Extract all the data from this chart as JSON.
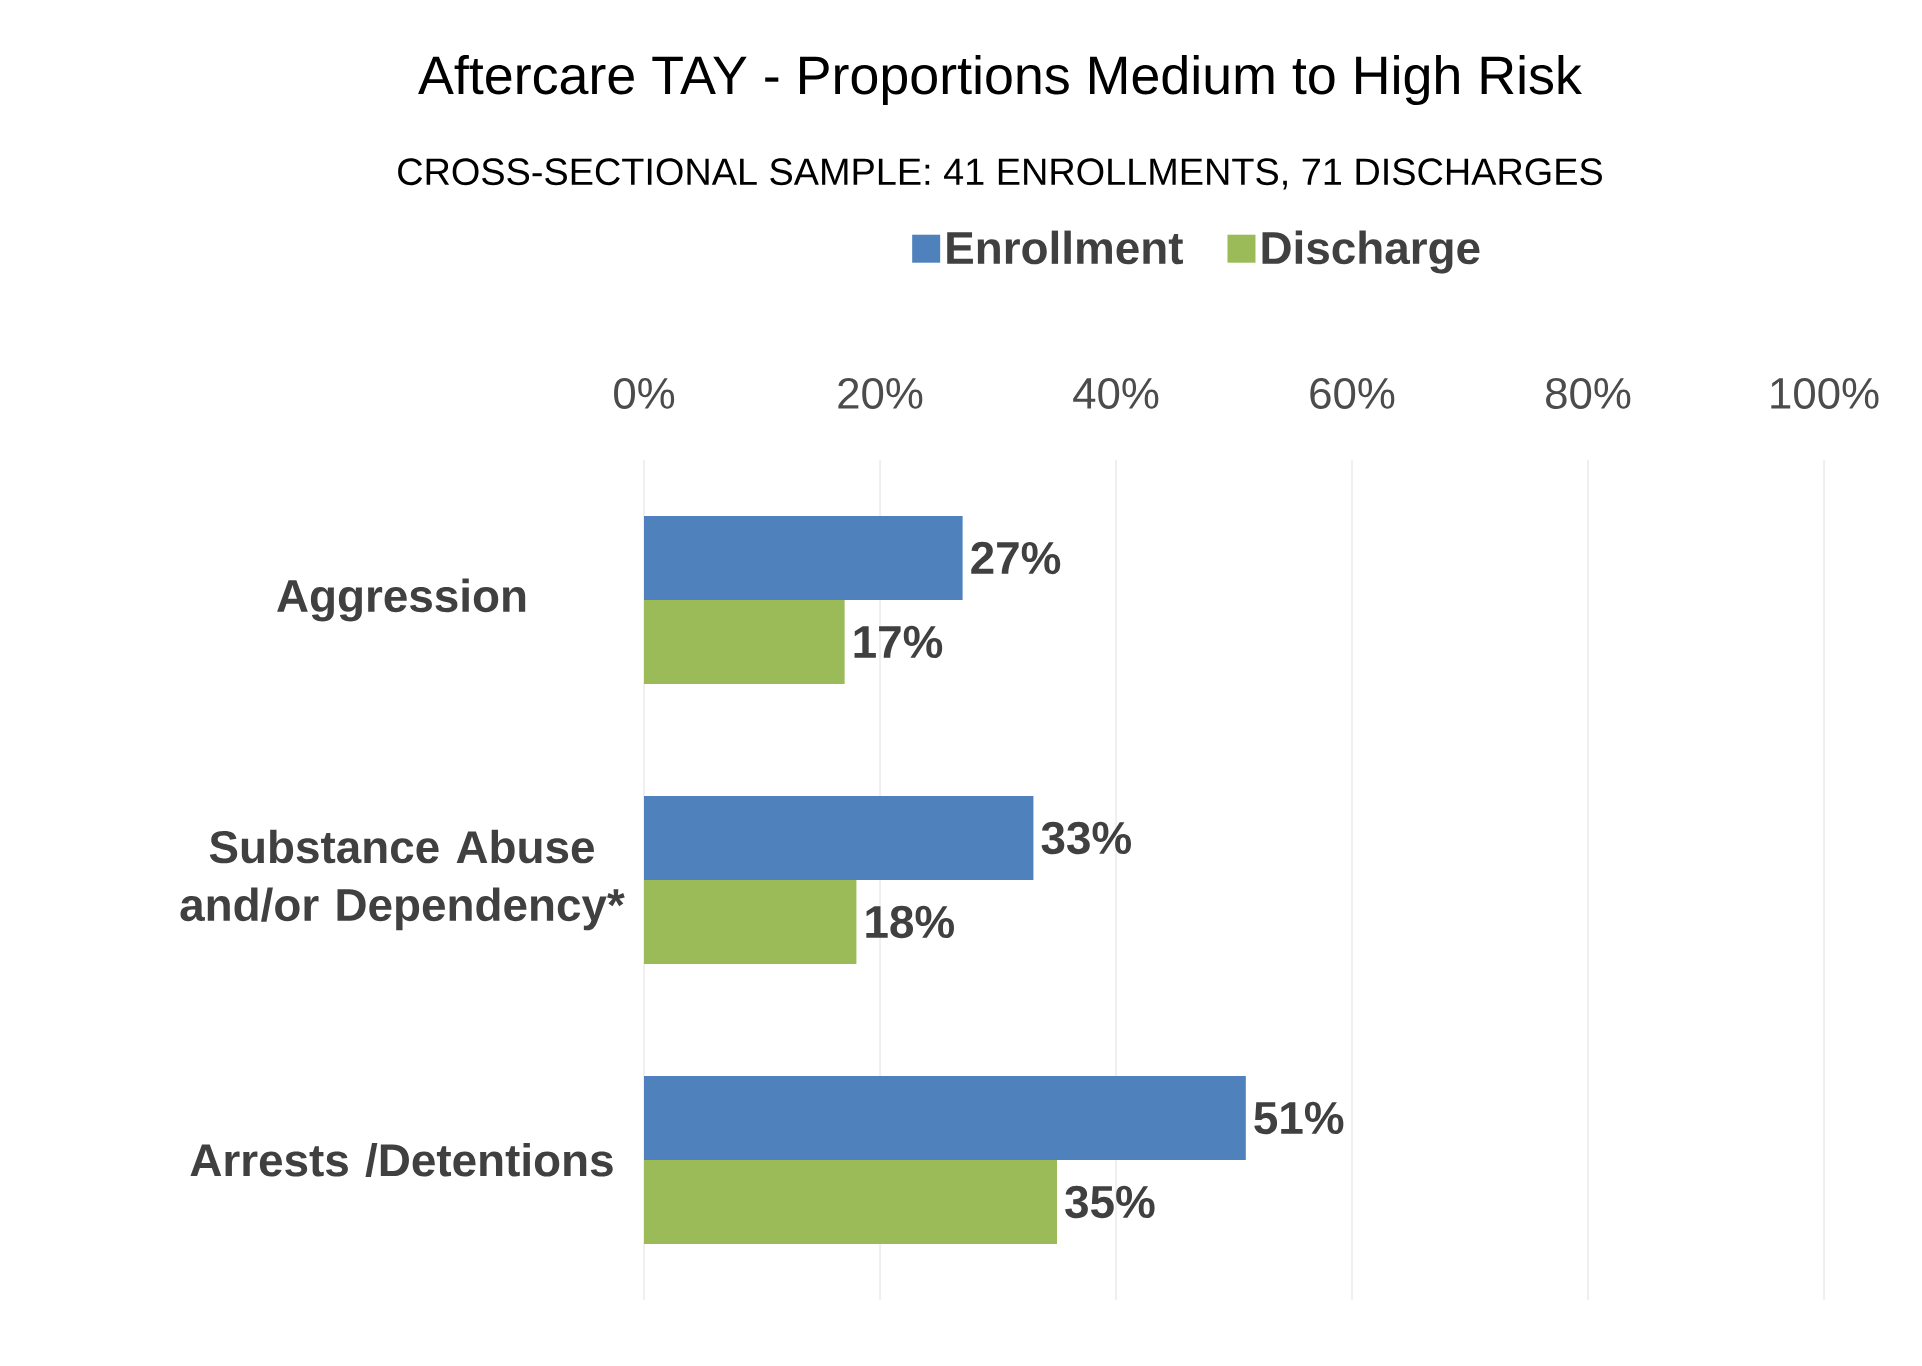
{
  "chart_data": {
    "type": "bar",
    "orientation": "horizontal",
    "title": "Aftercare TAY - Proportions Medium to High Risk",
    "subtitle": "CROSS-SECTIONAL SAMPLE: 41 ENROLLMENTS, 71 DISCHARGES",
    "categories": [
      "Aggression",
      "Substance Abuse and/or Dependency*",
      "Arrests /Detentions"
    ],
    "series": [
      {
        "name": "Enrollment",
        "color": "#4f81bd",
        "values": [
          27,
          33,
          51
        ],
        "value_labels": [
          "27%",
          "33%",
          "51%"
        ]
      },
      {
        "name": "Discharge",
        "color": "#9bbb59",
        "values": [
          17,
          18,
          35
        ],
        "value_labels": [
          "17%",
          "18%",
          "35%"
        ]
      }
    ],
    "xlim": [
      0,
      100
    ],
    "xticks": [
      {
        "value": 0,
        "label": "0%"
      },
      {
        "value": 20,
        "label": "20%"
      },
      {
        "value": 40,
        "label": "40%"
      },
      {
        "value": 60,
        "label": "60%"
      },
      {
        "value": 80,
        "label": "80%"
      },
      {
        "value": 100,
        "label": "100%"
      }
    ],
    "grid": "x",
    "legend": "top"
  }
}
